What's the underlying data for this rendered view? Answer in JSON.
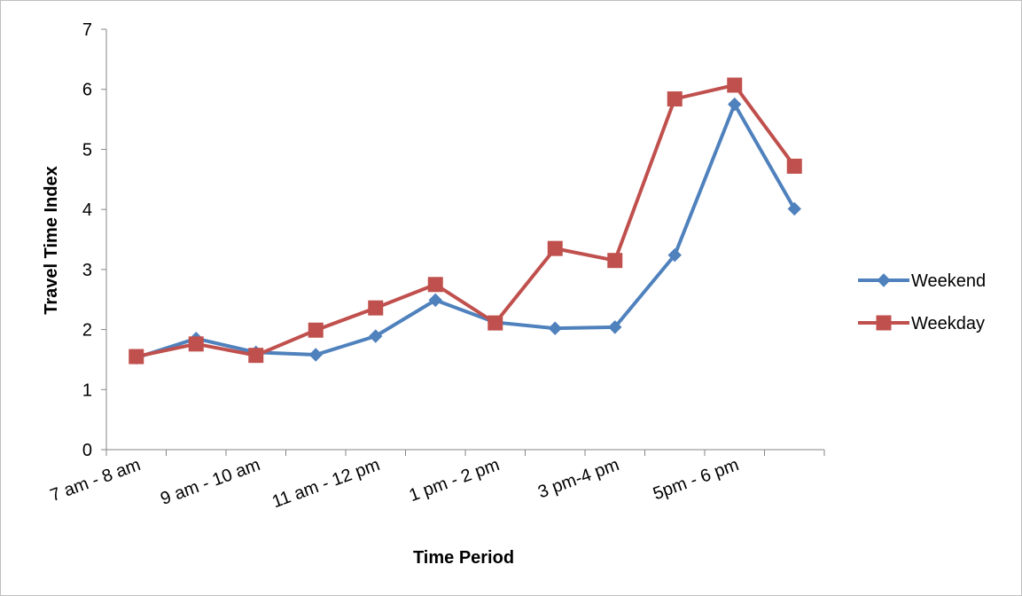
{
  "chart_data": {
    "type": "line",
    "xlabel": "Time Period",
    "ylabel": "Travel Time Index",
    "ylim": [
      0,
      7
    ],
    "yticks": [
      0,
      1,
      2,
      3,
      4,
      5,
      6,
      7
    ],
    "categories": [
      "7 am - 8 am",
      "",
      "9 am - 10 am",
      "",
      "11 am - 12 pm",
      "",
      "1 pm - 2 pm",
      "",
      "3 pm-4 pm",
      "",
      "5pm - 6 pm",
      ""
    ],
    "series": [
      {
        "name": "Weekend",
        "color": "#4F81BD",
        "marker": "diamond",
        "values": [
          1.53,
          1.85,
          1.62,
          1.58,
          1.89,
          2.49,
          2.12,
          2.02,
          2.04,
          3.24,
          5.75,
          4.01
        ]
      },
      {
        "name": "Weekday",
        "color": "#C0504D",
        "marker": "square",
        "values": [
          1.55,
          1.76,
          1.57,
          1.99,
          2.36,
          2.75,
          2.11,
          3.35,
          3.15,
          5.84,
          6.07,
          4.72
        ]
      }
    ],
    "grid": false,
    "legend": "right"
  }
}
